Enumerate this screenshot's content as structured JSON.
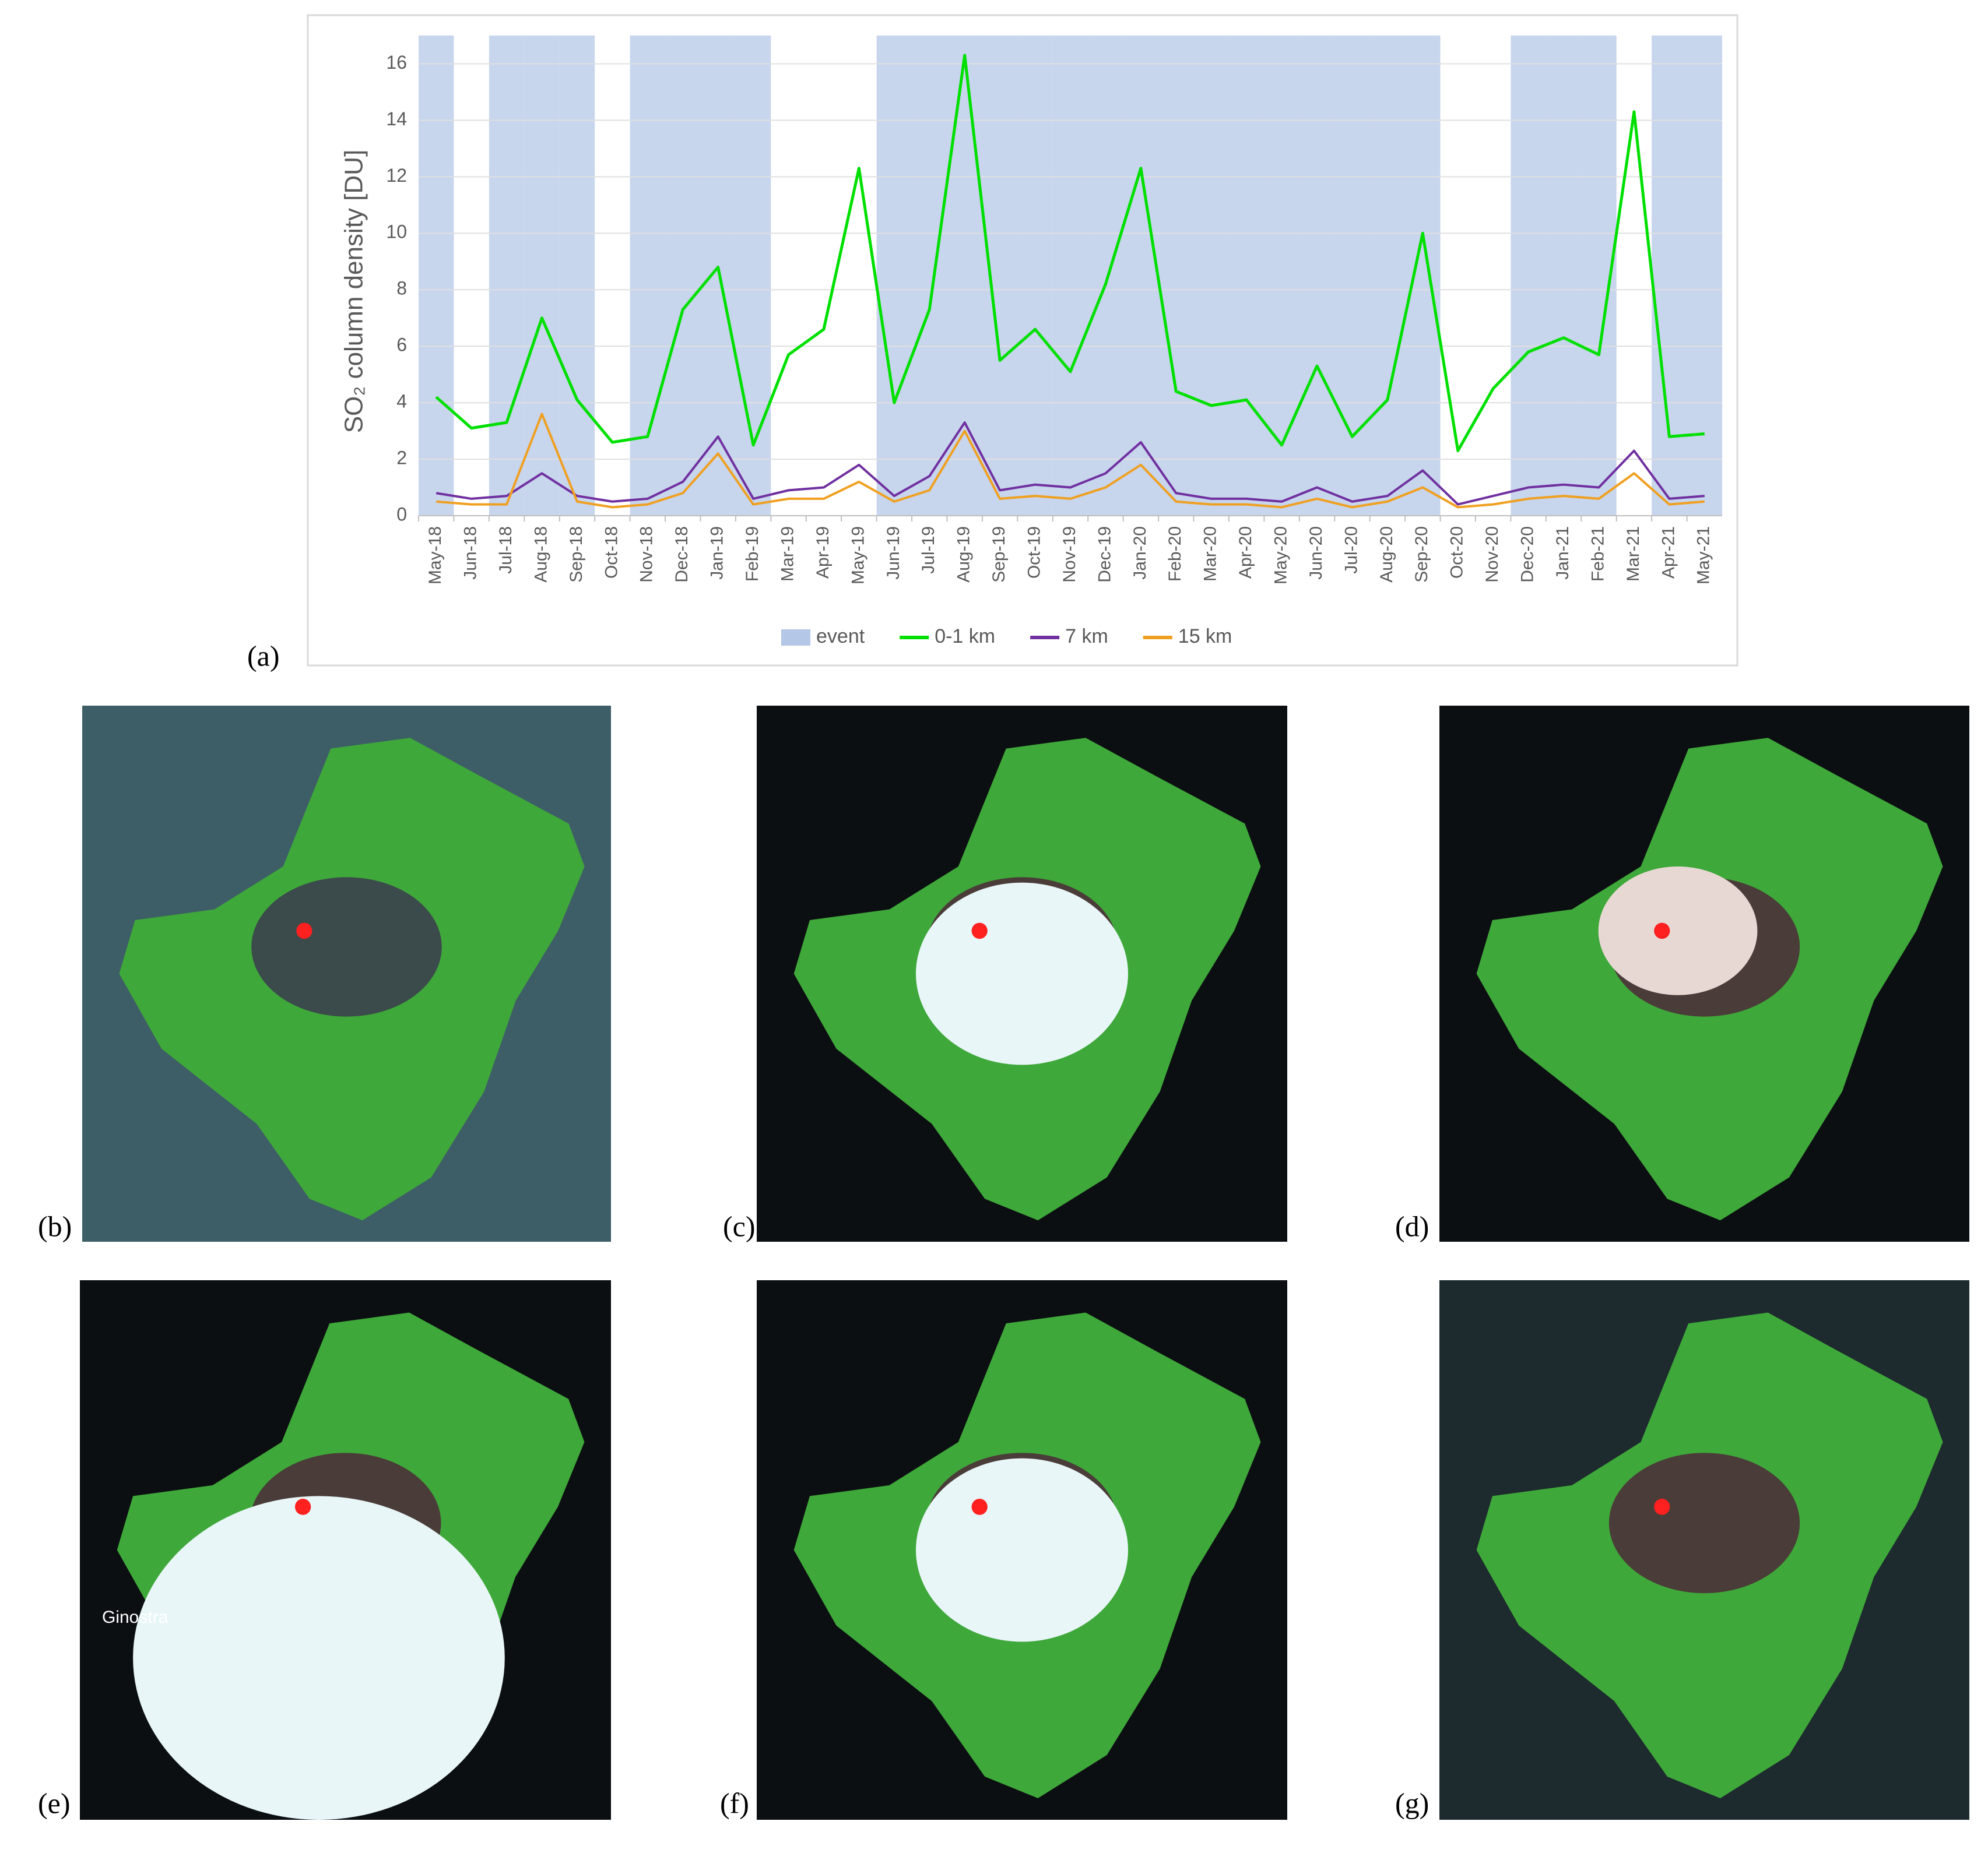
{
  "chart_data": {
    "type": "line",
    "y_label": "SO₂ column density [DU]",
    "categories": [
      "May-18",
      "Jun-18",
      "Jul-18",
      "Aug-18",
      "Sep-18",
      "Oct-18",
      "Nov-18",
      "Dec-18",
      "Jan-19",
      "Feb-19",
      "Mar-19",
      "Apr-19",
      "May-19",
      "Jun-19",
      "Jul-19",
      "Aug-19",
      "Sep-19",
      "Oct-19",
      "Nov-19",
      "Dec-19",
      "Jan-20",
      "Feb-20",
      "Mar-20",
      "Apr-20",
      "May-20",
      "Jun-20",
      "Jul-20",
      "Aug-20",
      "Sep-20",
      "Oct-20",
      "Nov-20",
      "Dec-20",
      "Jan-21",
      "Feb-21",
      "Mar-21",
      "Apr-21",
      "May-21"
    ],
    "series": [
      {
        "name": "event",
        "color": "#b4c7e7",
        "kind": "band",
        "values": [
          17,
          null,
          17,
          17,
          17,
          null,
          17,
          17,
          17,
          17,
          null,
          null,
          null,
          17,
          17,
          17,
          17,
          17,
          17,
          17,
          17,
          17,
          17,
          17,
          17,
          17,
          17,
          17,
          17,
          null,
          null,
          17,
          17,
          17,
          null,
          17,
          17
        ]
      },
      {
        "name": "0-1 km",
        "color": "#00e000",
        "values": [
          4.2,
          3.1,
          3.3,
          7.0,
          4.1,
          2.6,
          2.8,
          7.3,
          8.8,
          2.5,
          5.7,
          6.6,
          12.3,
          4.0,
          7.3,
          16.3,
          5.5,
          6.6,
          5.1,
          8.2,
          12.3,
          4.4,
          3.9,
          4.1,
          2.5,
          5.3,
          2.8,
          4.1,
          10.0,
          2.3,
          4.5,
          5.8,
          6.3,
          5.7,
          14.3,
          2.8,
          2.9
        ]
      },
      {
        "name": "7 km",
        "color": "#7030a0",
        "values": [
          0.8,
          0.6,
          0.7,
          1.5,
          0.7,
          0.5,
          0.6,
          1.2,
          2.8,
          0.6,
          0.9,
          1.0,
          1.8,
          0.7,
          1.4,
          3.3,
          0.9,
          1.1,
          1.0,
          1.5,
          2.6,
          0.8,
          0.6,
          0.6,
          0.5,
          1.0,
          0.5,
          0.7,
          1.6,
          0.4,
          0.7,
          1.0,
          1.1,
          1.0,
          2.3,
          0.6,
          0.7
        ]
      },
      {
        "name": "15 km",
        "color": "#f0a020",
        "values": [
          0.5,
          0.4,
          0.4,
          3.6,
          0.5,
          0.3,
          0.4,
          0.8,
          2.2,
          0.4,
          0.6,
          0.6,
          1.2,
          0.5,
          0.9,
          3.0,
          0.6,
          0.7,
          0.6,
          1.0,
          1.8,
          0.5,
          0.4,
          0.4,
          0.3,
          0.6,
          0.3,
          0.5,
          1.0,
          0.3,
          0.4,
          0.6,
          0.7,
          0.6,
          1.5,
          0.4,
          0.5
        ]
      }
    ],
    "ylim": [
      0,
      17
    ],
    "yticks": [
      0,
      2,
      4,
      6,
      8,
      10,
      12,
      14,
      16
    ],
    "grid": true,
    "legend": "bottom"
  },
  "panel_labels": [
    "(a)",
    "(b)",
    "(c)",
    "(d)",
    "(e)",
    "(f)",
    "(g)"
  ],
  "annotation": "Ginostra"
}
